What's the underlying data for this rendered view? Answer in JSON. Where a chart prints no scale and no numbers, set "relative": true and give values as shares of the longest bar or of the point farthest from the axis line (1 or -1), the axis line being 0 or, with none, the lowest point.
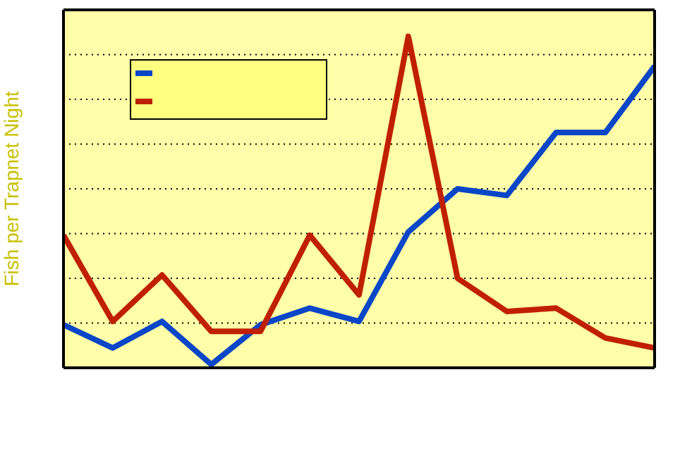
{
  "chart_data": {
    "type": "line",
    "ylabel": "Fish per Trapnet Night",
    "relative": true,
    "grid": "y",
    "categories": [
      null,
      null,
      null,
      null,
      null,
      null,
      null,
      null,
      null,
      null,
      null,
      null,
      null
    ],
    "series": [
      {
        "color": "#0a46c8",
        "values": [
          0.13,
          0.06,
          0.14,
          0.01,
          0.13,
          0.18,
          0.14,
          0.41,
          0.54,
          0.52,
          0.71,
          0.71,
          0.91
        ]
      },
      {
        "color": "#c02000",
        "values": [
          0.4,
          0.14,
          0.28,
          0.11,
          0.11,
          0.4,
          0.22,
          1,
          0.27,
          0.17,
          0.18,
          0.09,
          0.06
        ]
      }
    ]
  }
}
